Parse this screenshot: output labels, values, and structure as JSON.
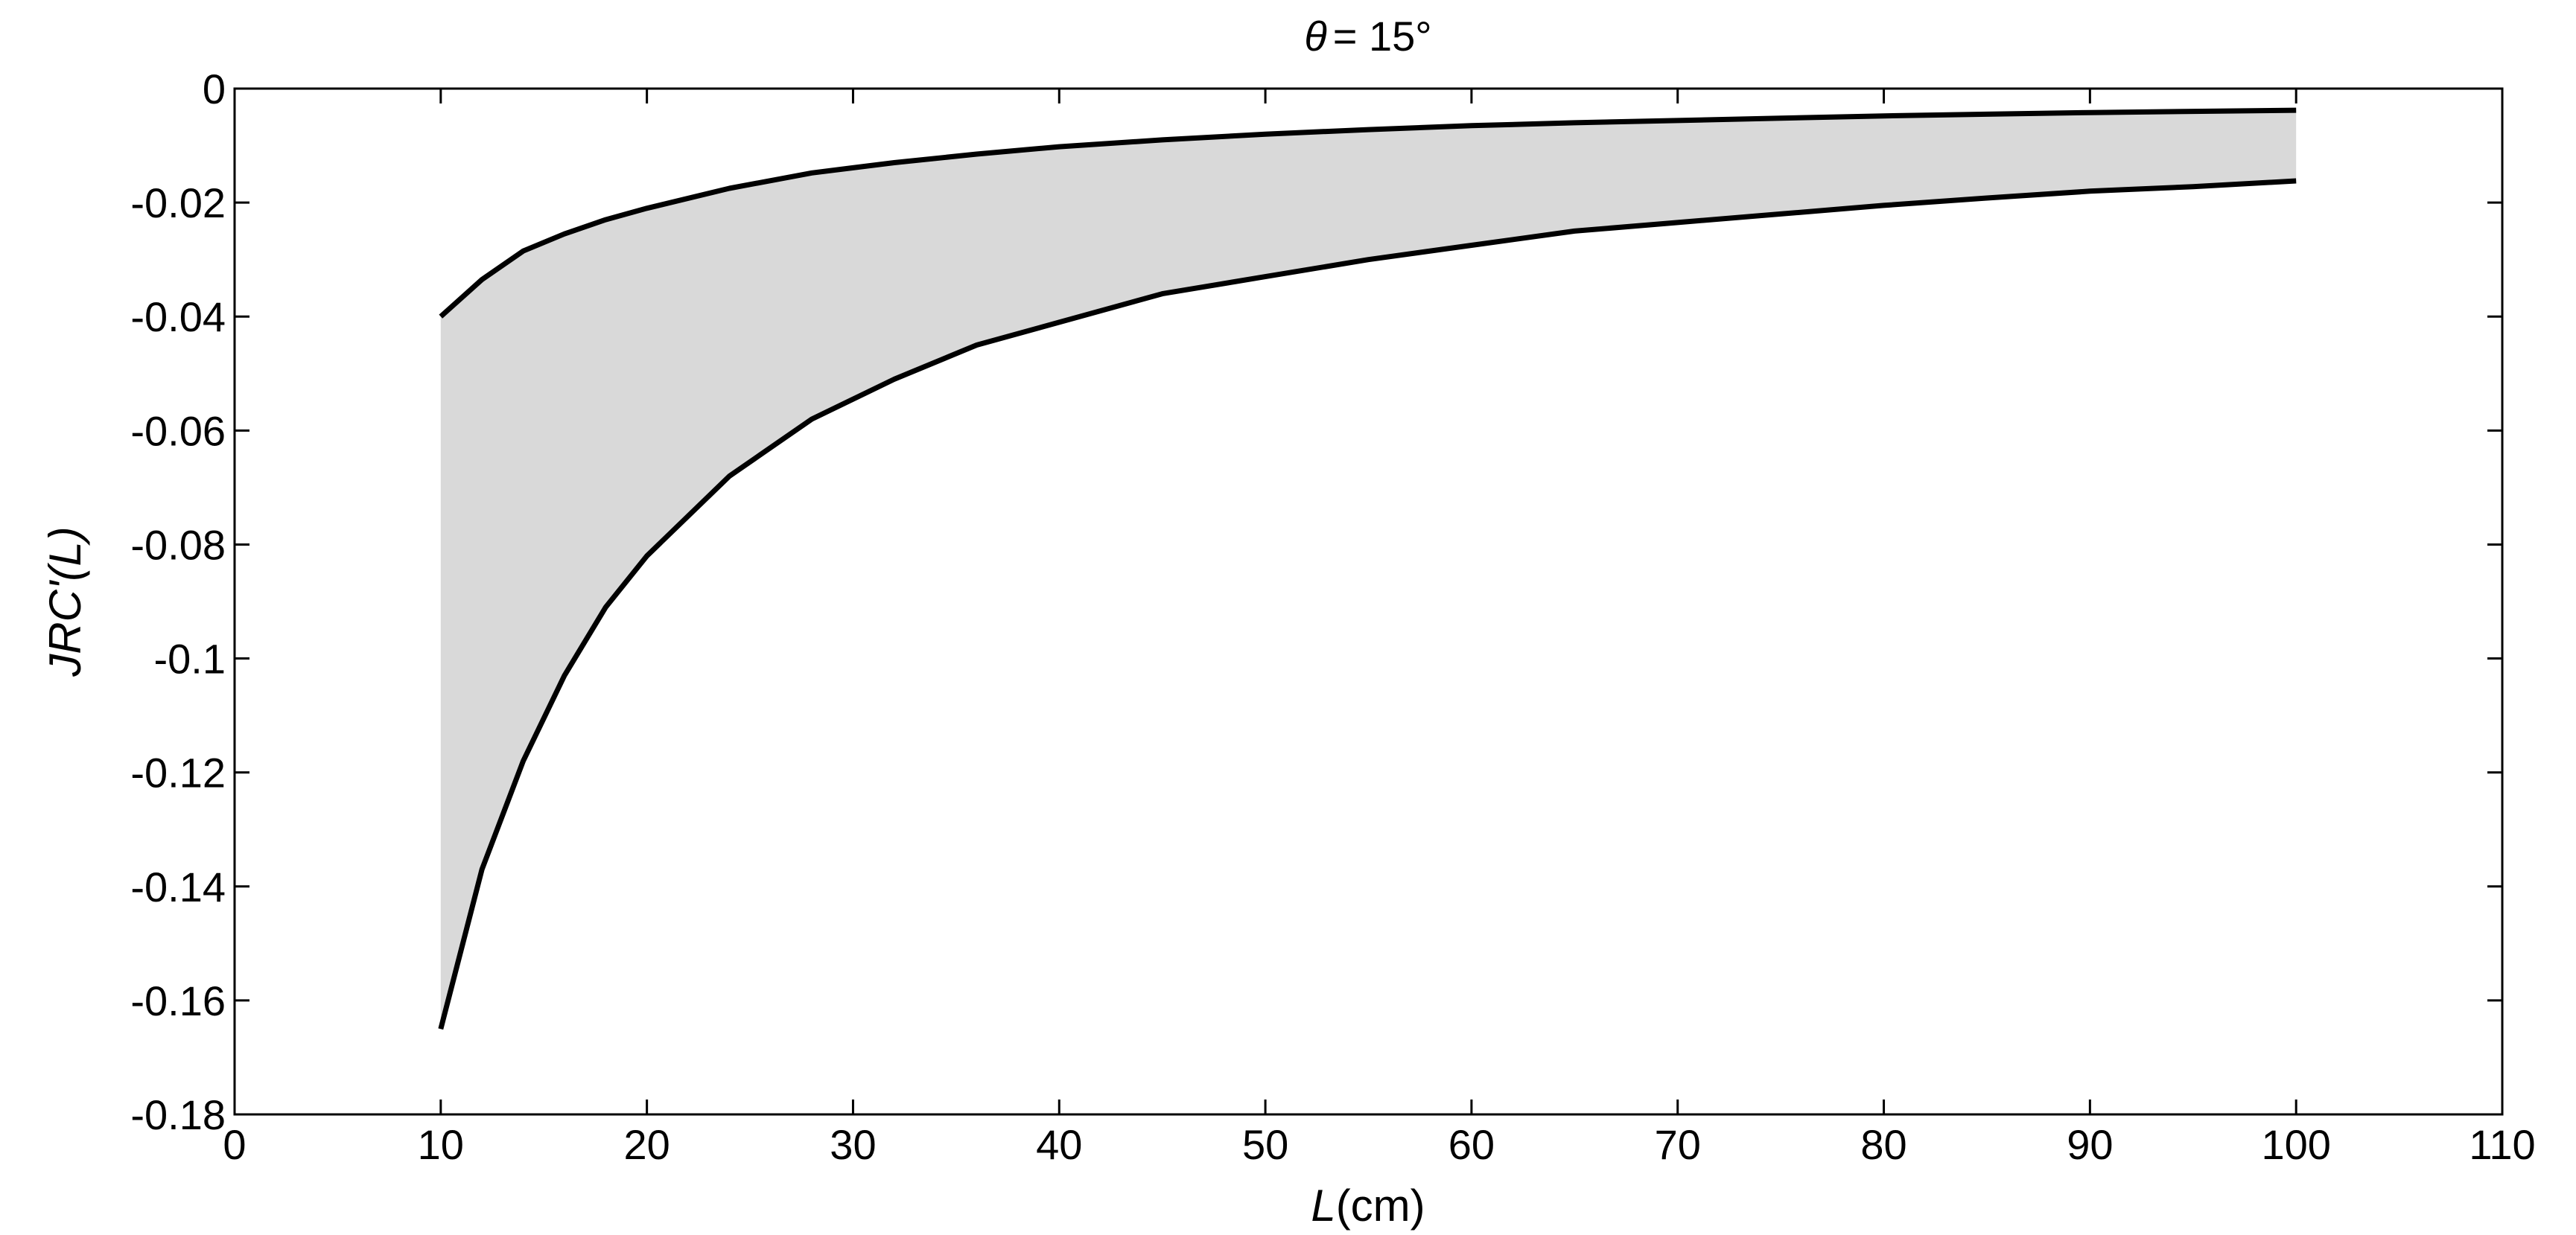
{
  "chart_data": {
    "type": "area",
    "title": {
      "symbol": "θ",
      "text": "= 15°"
    },
    "xlabel": {
      "italic": "L",
      "rest": "(cm)"
    },
    "ylabel": {
      "italic_prefix": "JRC'(",
      "italic_var": "L",
      "suffix": ")"
    },
    "xlim": [
      0,
      110
    ],
    "ylim": [
      -0.18,
      0
    ],
    "xticks": [
      0,
      10,
      20,
      30,
      40,
      50,
      60,
      70,
      80,
      90,
      100,
      110
    ],
    "xtick_labels": [
      "0",
      "10",
      "20",
      "30",
      "40",
      "50",
      "60",
      "70",
      "80",
      "90",
      "100",
      "110"
    ],
    "yticks": [
      0,
      -0.02,
      -0.04,
      -0.06,
      -0.08,
      -0.1,
      -0.12,
      -0.14,
      -0.16,
      -0.18
    ],
    "ytick_labels": [
      "0",
      "-0.02",
      "-0.04",
      "-0.06",
      "-0.08",
      "-0.1",
      "-0.12",
      "-0.14",
      "-0.16",
      "-0.18"
    ],
    "grid": false,
    "colors": {
      "band": "#d9d9d9",
      "line": "#000000"
    },
    "x": [
      10,
      12,
      14,
      16,
      18,
      20,
      24,
      28,
      32,
      36,
      40,
      45,
      50,
      55,
      60,
      65,
      70,
      75,
      80,
      85,
      90,
      95,
      100
    ],
    "series": [
      {
        "values": [
          -0.04,
          -0.0335,
          -0.0285,
          -0.0255,
          -0.023,
          -0.021,
          -0.0175,
          -0.0148,
          -0.013,
          -0.0115,
          -0.0102,
          -0.009,
          -0.008,
          -0.0072,
          -0.0065,
          -0.006,
          -0.0056,
          -0.0052,
          -0.0048,
          -0.0045,
          -0.0042,
          -0.004,
          -0.0038
        ]
      },
      {
        "values": [
          -0.165,
          -0.137,
          -0.118,
          -0.103,
          -0.091,
          -0.082,
          -0.068,
          -0.058,
          -0.051,
          -0.045,
          -0.041,
          -0.036,
          -0.033,
          -0.03,
          -0.0275,
          -0.025,
          -0.0235,
          -0.022,
          -0.0205,
          -0.0192,
          -0.018,
          -0.0172,
          -0.0162
        ]
      }
    ]
  }
}
